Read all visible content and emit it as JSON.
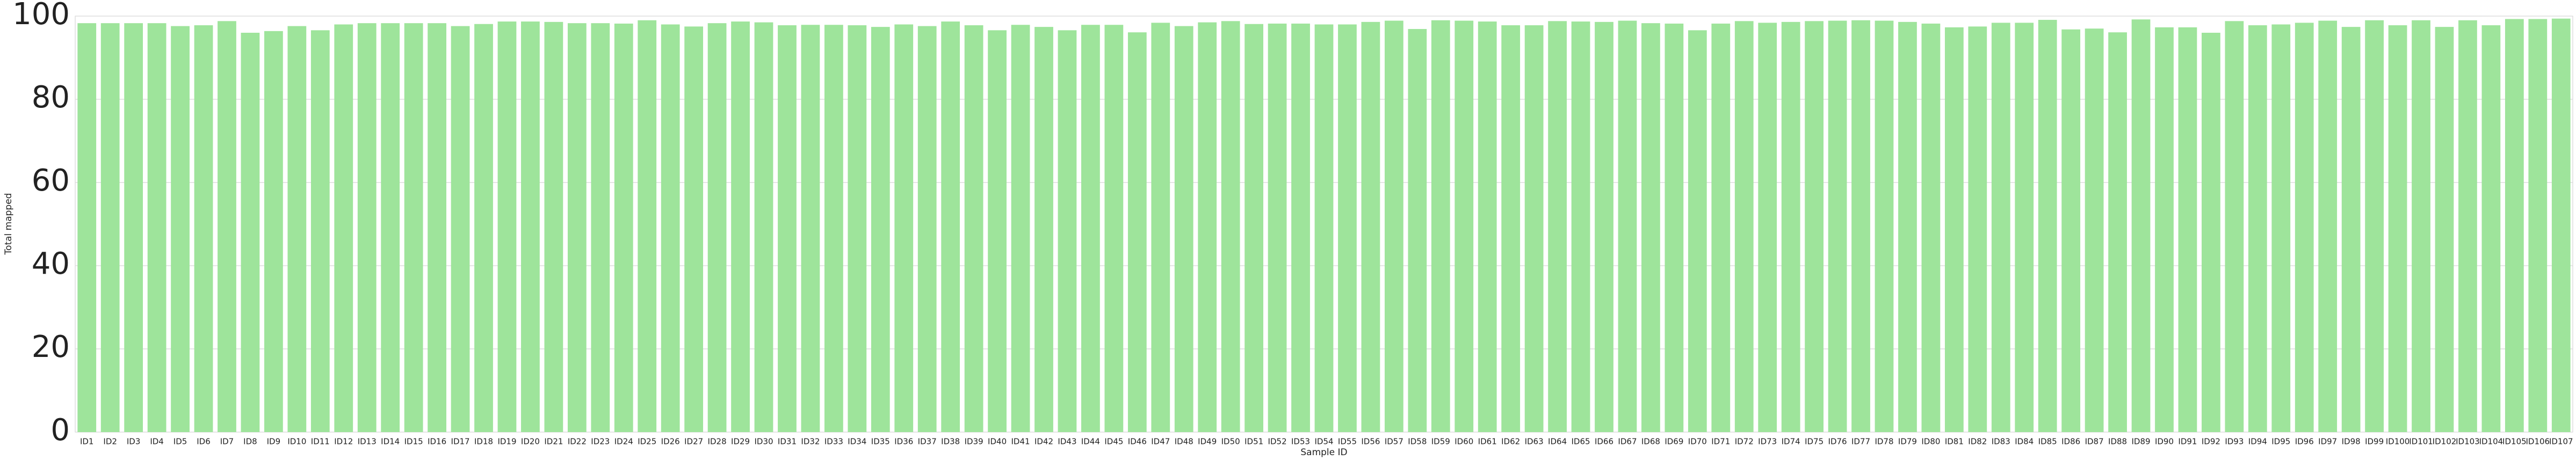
{
  "chart_data": {
    "type": "bar",
    "xlabel": "Sample ID",
    "ylabel": "Total mapped",
    "categories": [
      "ID1",
      "ID2",
      "ID3",
      "ID4",
      "ID5",
      "ID6",
      "ID7",
      "ID8",
      "ID9",
      "ID10",
      "ID11",
      "ID12",
      "ID13",
      "ID14",
      "ID15",
      "ID16",
      "ID17",
      "ID18",
      "ID19",
      "ID20",
      "ID21",
      "ID22",
      "ID23",
      "ID24",
      "ID25",
      "ID26",
      "ID27",
      "ID28",
      "ID29",
      "ID30",
      "ID31",
      "ID32",
      "ID33",
      "ID34",
      "ID35",
      "ID36",
      "ID37",
      "ID38",
      "ID39",
      "ID40",
      "ID41",
      "ID42",
      "ID43",
      "ID44",
      "ID45",
      "ID46",
      "ID47",
      "ID48",
      "ID49",
      "ID50",
      "ID51",
      "ID52",
      "ID53",
      "ID54",
      "ID55",
      "ID56",
      "ID57",
      "ID58",
      "ID59",
      "ID60",
      "ID61",
      "ID62",
      "ID63",
      "ID64",
      "ID65",
      "ID66",
      "ID67",
      "ID68",
      "ID69",
      "ID70",
      "ID71",
      "ID72",
      "ID73",
      "ID74",
      "ID75",
      "ID76",
      "ID77",
      "ID78",
      "ID79",
      "ID80",
      "ID81",
      "ID82",
      "ID83",
      "ID84",
      "ID85",
      "ID86",
      "ID87",
      "ID88",
      "ID89",
      "ID90",
      "ID91",
      "ID92",
      "ID93",
      "ID94",
      "ID95",
      "ID96",
      "ID97",
      "ID98",
      "ID99",
      "ID100",
      "ID101",
      "ID102",
      "ID103",
      "ID104",
      "ID105",
      "ID106",
      "ID107"
    ],
    "values": [
      98.3,
      98.3,
      98.3,
      98.3,
      97.6,
      97.8,
      98.8,
      96,
      96.4,
      97.6,
      96.6,
      98,
      98.3,
      98.3,
      98.3,
      98.3,
      97.6,
      98.1,
      98.7,
      98.7,
      98.6,
      98.3,
      98.3,
      98.2,
      99,
      98,
      97.5,
      98.3,
      98.7,
      98.5,
      97.8,
      97.9,
      97.9,
      97.8,
      97.4,
      98,
      97.6,
      98.7,
      97.8,
      96.6,
      97.9,
      97.4,
      96.6,
      97.9,
      97.9,
      96.1,
      98.4,
      97.6,
      98.5,
      98.8,
      98.1,
      98.2,
      98.2,
      98,
      98,
      98.6,
      98.9,
      96.9,
      99,
      98.9,
      98.7,
      97.8,
      97.8,
      98.8,
      98.7,
      98.6,
      98.9,
      98.3,
      98.2,
      96.6,
      98.2,
      98.8,
      98.4,
      98.6,
      98.8,
      98.9,
      99,
      98.9,
      98.6,
      98.2,
      97.3,
      97.5,
      98.4,
      98.4,
      99.1,
      96.8,
      97,
      96.1,
      99.2,
      97.3,
      97.3,
      96,
      98.8,
      97.8,
      98,
      98.4,
      98.9,
      97.4,
      99,
      97.8,
      99,
      97.4,
      99,
      97.8,
      99.3,
      99.3,
      99.4
    ],
    "color": "#9ee49b",
    "ylim": [
      0,
      100
    ],
    "yticks": [
      0,
      20,
      40,
      60,
      80,
      100
    ],
    "grid": true
  }
}
